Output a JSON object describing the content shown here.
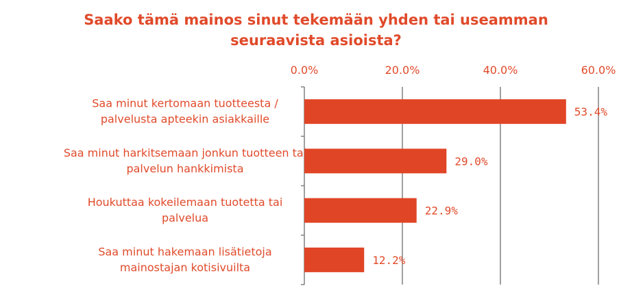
{
  "chart_data": {
    "type": "bar",
    "orientation": "horizontal",
    "title_lines": [
      "Saako tämä mainos sinut tekemään yhden tai useamman",
      "seuraavista asioista?"
    ],
    "categories": [
      [
        "Saa minut kertomaan tuotteesta /",
        "palvelusta apteekin asiakkaille"
      ],
      [
        "Saa minut harkitsemaan jonkun tuotteen tai",
        "palvelun hankkimista"
      ],
      [
        "Houkuttaa kokeilemaan tuotetta tai",
        "palvelua"
      ],
      [
        "Saa minut hakemaan lisätietoja",
        "mainostajan kotisivuilta"
      ]
    ],
    "values": [
      53.4,
      29.0,
      22.9,
      12.2
    ],
    "value_labels": [
      "53.4%",
      "29.0%",
      "22.9%",
      "12.2%"
    ],
    "xaxis": {
      "ticks": [
        0,
        20,
        40,
        60
      ],
      "tick_labels": [
        "0.0%",
        "20.0%",
        "40.0%",
        "60.0%"
      ],
      "position": "top",
      "range": [
        0,
        60
      ]
    },
    "grid": true,
    "colors": {
      "bar": "#e04526",
      "text": "#e04a2a",
      "grid": "#808080"
    }
  }
}
